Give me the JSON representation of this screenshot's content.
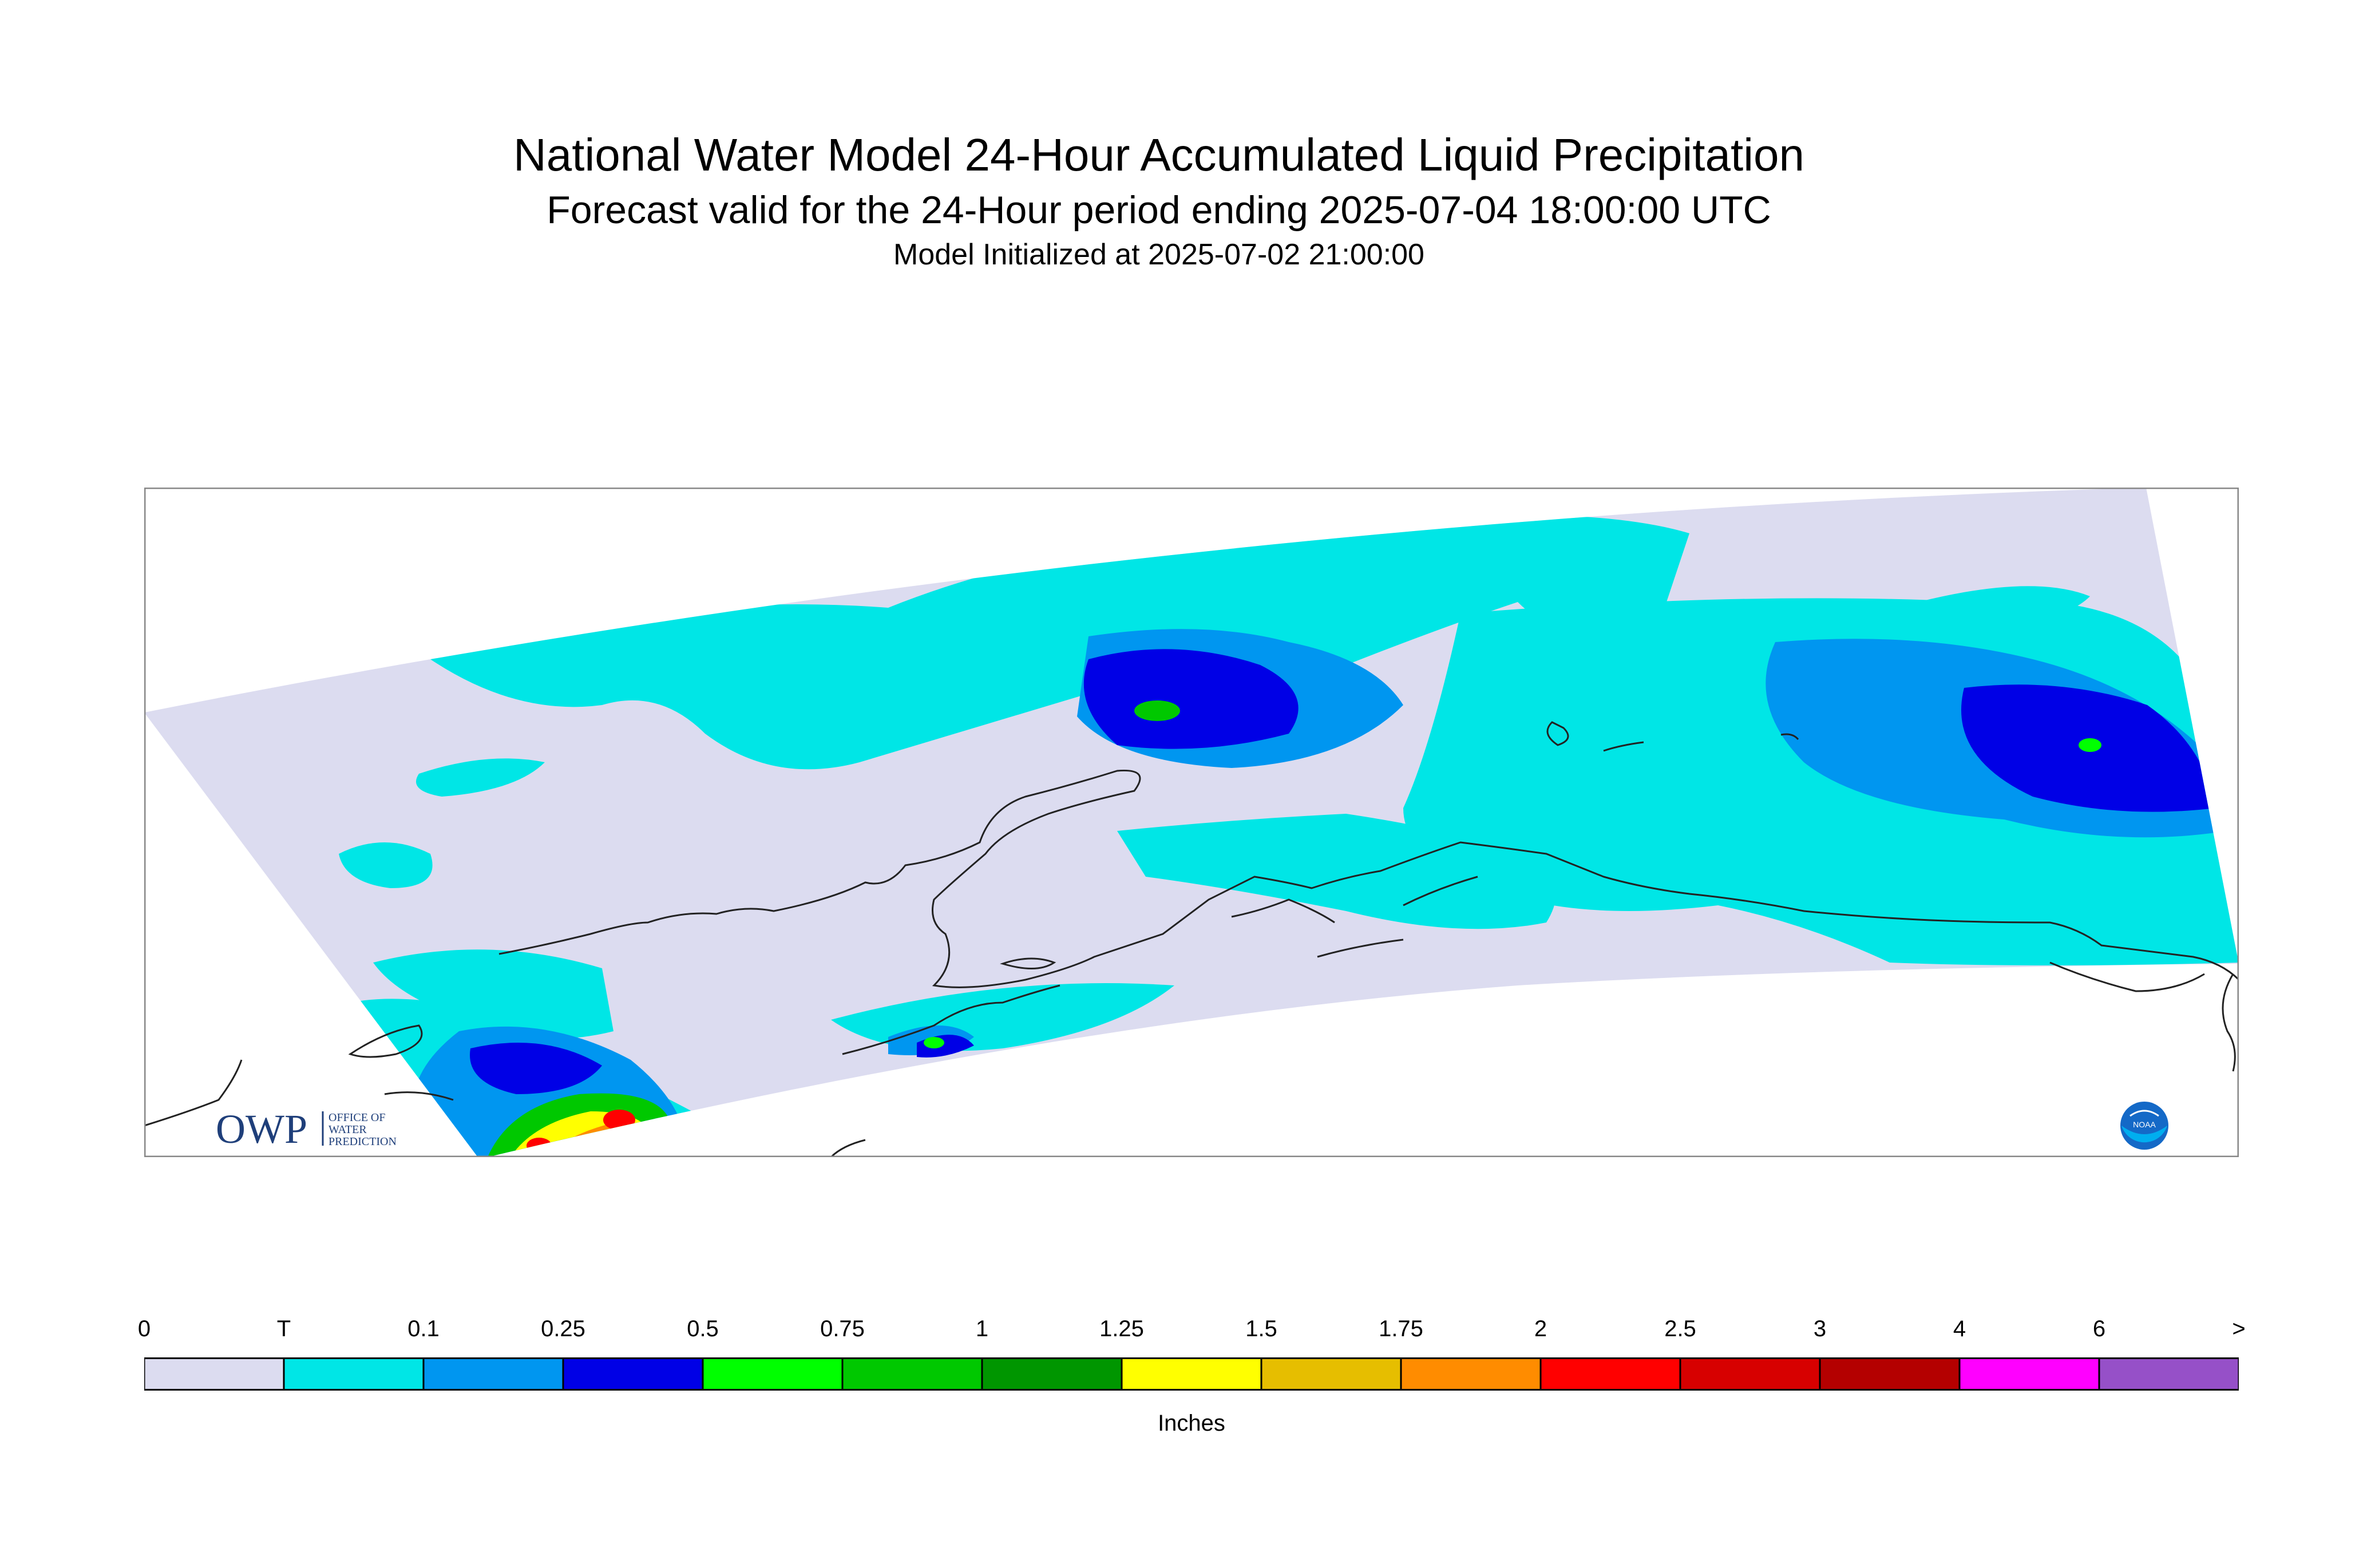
{
  "title": {
    "main": "National Water Model 24-Hour Accumulated Liquid Precipitation",
    "sub": "Forecast valid for the 24-Hour period ending 2025-07-04 18:00:00 UTC",
    "init": "Model Initialized at 2025-07-02 21:00:00"
  },
  "legend": {
    "labels": [
      "0",
      "T",
      "0.1",
      "0.25",
      "0.5",
      "0.75",
      "1",
      "1.25",
      "1.5",
      "1.75",
      "2",
      "2.5",
      "3",
      "4",
      "6",
      ">"
    ],
    "colors": [
      "#dcdcf0",
      "#00e6e6",
      "#0096f0",
      "#0000e6",
      "#00ff00",
      "#00c800",
      "#009600",
      "#ffff00",
      "#e6be00",
      "#ff8c00",
      "#ff0000",
      "#d70000",
      "#b40000",
      "#ff00ff",
      "#9650c8"
    ],
    "units": "Inches"
  },
  "map": {
    "background": "#dcdcf0",
    "trace_color": "#00e6e6",
    "coastline_color": "#222222"
  },
  "logos": {
    "owp": {
      "letters": "OWP",
      "line1": "OFFICE OF",
      "line2": "WATER",
      "line3": "PREDICTION"
    },
    "noaa": {
      "letters": "NOAA"
    }
  }
}
